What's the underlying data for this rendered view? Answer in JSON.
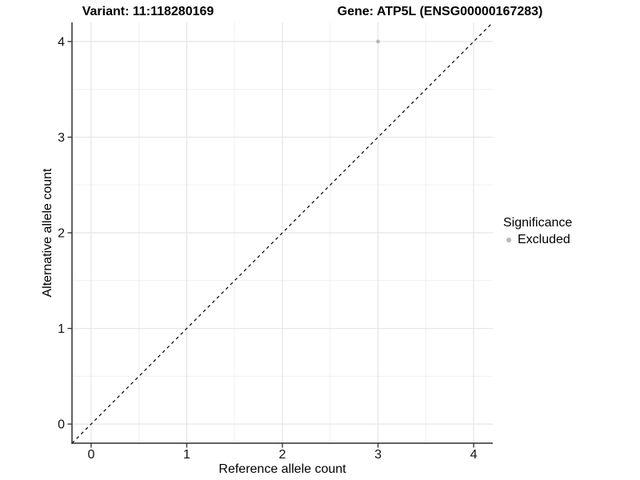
{
  "chart_data": {
    "type": "scatter",
    "title_left": "Variant: 11:118280169",
    "title_right": "Gene: ATP5L (ENSG00000167283)",
    "xlabel": "Reference allele count",
    "ylabel": "Alternative allele count",
    "xlim": [
      -0.2,
      4.2
    ],
    "ylim": [
      -0.2,
      4.2
    ],
    "xticks": [
      0,
      1,
      2,
      3,
      4
    ],
    "yticks": [
      0,
      1,
      2,
      3,
      4
    ],
    "grid": {
      "major": true,
      "minor": true
    },
    "reference_line": {
      "style": "dashed",
      "slope": 1,
      "intercept": 0,
      "color": "#000000"
    },
    "series": [
      {
        "name": "Excluded",
        "color": "#b8b8b8",
        "points": [
          {
            "x": 3,
            "y": 4
          }
        ]
      }
    ],
    "legend": {
      "title": "Significance",
      "position": "right",
      "items": [
        {
          "label": "Excluded",
          "color": "#b8b8b8"
        }
      ]
    },
    "colors": {
      "background": "#ffffff",
      "axis": "#2e2e2e",
      "tick_label": "#111111",
      "gridline_major": "#e5e5e5",
      "gridline_minor": "#f0f0f0"
    }
  }
}
